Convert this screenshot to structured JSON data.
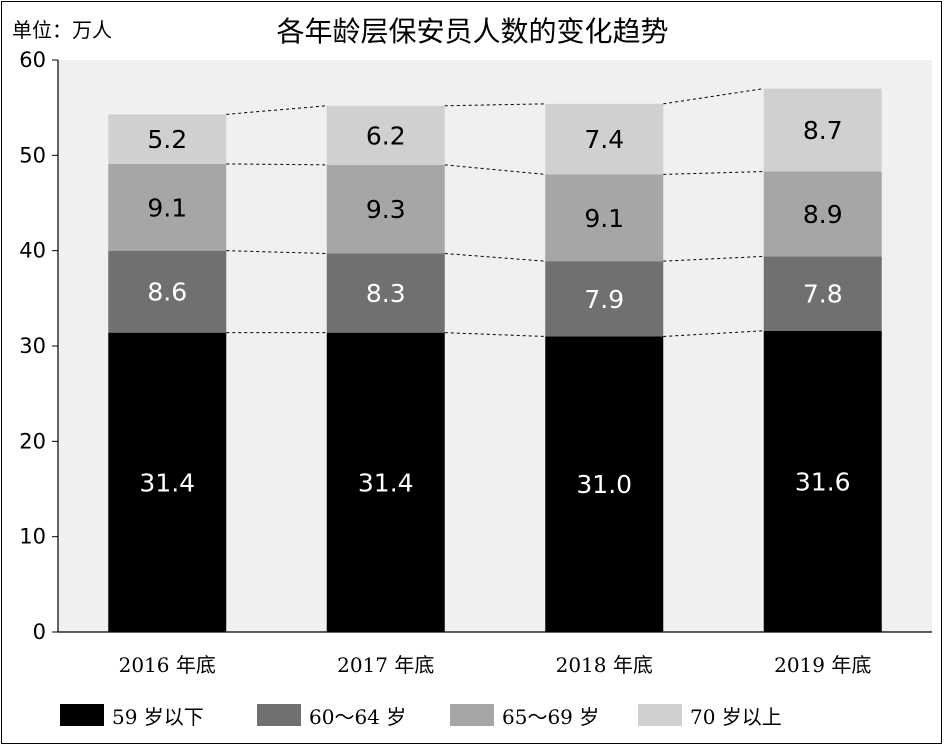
{
  "unit_label": "单位：万人",
  "chart_data": {
    "type": "bar",
    "stacked": true,
    "title": "各年龄层保安员人数的变化趋势",
    "categories": [
      "2016 年底",
      "2017 年底",
      "2018 年底",
      "2019 年底"
    ],
    "ylim": [
      0,
      60
    ],
    "yticks": [
      0,
      10,
      20,
      30,
      40,
      50,
      60
    ],
    "grid": false,
    "plot_background": "#f0f0f0",
    "legend_position": "bottom",
    "connector_lines": "dotted",
    "series": [
      {
        "name": "59 岁以下",
        "values": [
          31.4,
          31.4,
          31.0,
          31.6
        ],
        "labels": [
          "31.4",
          "31.4",
          "31.0",
          "31.6"
        ],
        "color": "#000000",
        "label_color": "#ffffff"
      },
      {
        "name": "60～64 岁",
        "values": [
          8.6,
          8.3,
          7.9,
          7.8
        ],
        "labels": [
          "8.6",
          "8.3",
          "7.9",
          "7.8"
        ],
        "color": "#707070",
        "label_color": "#ffffff"
      },
      {
        "name": "65～69 岁",
        "values": [
          9.1,
          9.3,
          9.1,
          8.9
        ],
        "labels": [
          "9.1",
          "9.3",
          "9.1",
          "8.9"
        ],
        "color": "#a6a6a6",
        "label_color": "#000000"
      },
      {
        "name": "70 岁以上",
        "values": [
          5.2,
          6.2,
          7.4,
          8.7
        ],
        "labels": [
          "5.2",
          "6.2",
          "7.4",
          "8.7"
        ],
        "color": "#d0d0d0",
        "label_color": "#000000"
      }
    ]
  }
}
